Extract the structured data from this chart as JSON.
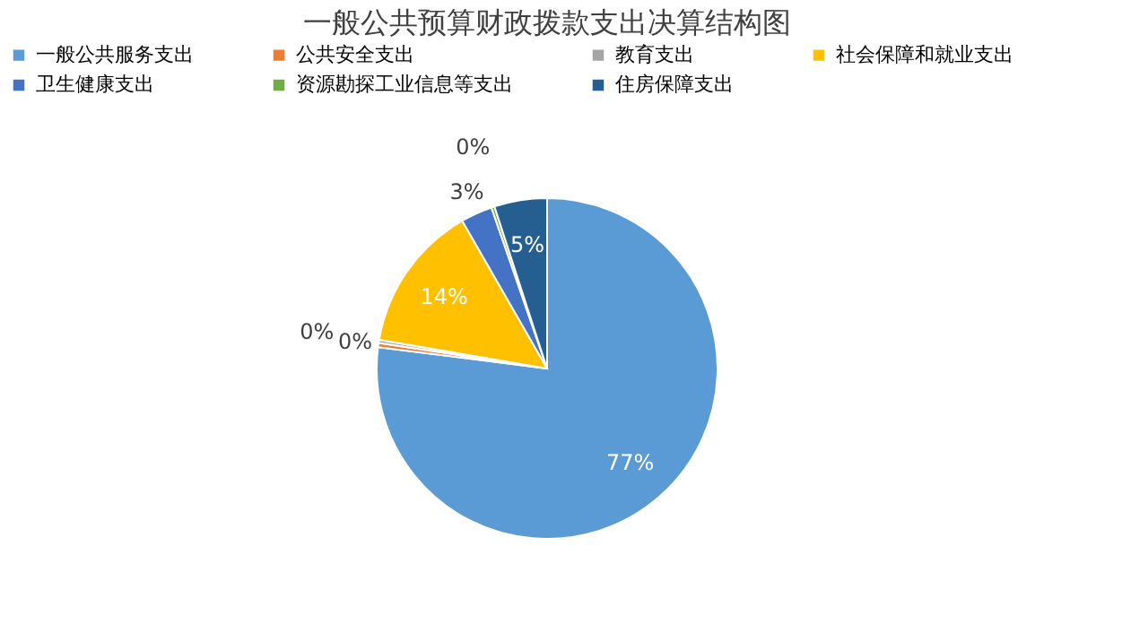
{
  "chart_data": {
    "type": "pie",
    "title": "一般公共预算财政拨款支出决算结构图",
    "categories": [
      "一般公共服务支出",
      "公共安全支出",
      "教育支出",
      "社会保障和就业支出",
      "卫生健康支出",
      "资源勘探工业信息等支出",
      "住房保障支出"
    ],
    "values": [
      77,
      0.4,
      0.3,
      14,
      3,
      0.3,
      5
    ],
    "colors": [
      "#5b9bd5",
      "#ed7d31",
      "#a5a5a5",
      "#ffc000",
      "#4472c4",
      "#70ad47",
      "#255e91"
    ],
    "value_labels": [
      "77%",
      "0%",
      "0%",
      "14%",
      "3%",
      "0%",
      "5%"
    ],
    "legend": "top"
  }
}
